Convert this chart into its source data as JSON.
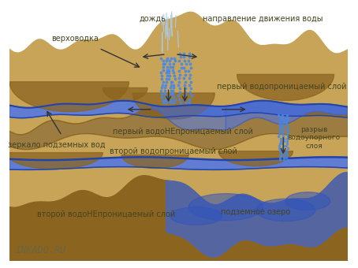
{
  "bg_color": "#ffffff",
  "sand_color": "#c8a458",
  "sand_dark": "#8b6520",
  "water_color": "#4466cc",
  "blue_line_color": "#2244aa",
  "text_color": "#444422",
  "watermark": "INKADO.RU",
  "labels": {
    "rain": "дождь",
    "direction": "направление движения воды",
    "verkhovodka": "верховодка",
    "layer1_perm": "первый водопроницаемый слой",
    "layer1_imperm": "первый водоНЕпроницаемый слой",
    "mirror": "зеркало подземных вод",
    "layer2_perm": "второй водопроницаемый слой",
    "layer2_imperm": "второй водоНЕпроницаемый слой",
    "rupture": "разрыв\nводоупорного\nслоя",
    "underground_lake": "подземное озеро"
  }
}
